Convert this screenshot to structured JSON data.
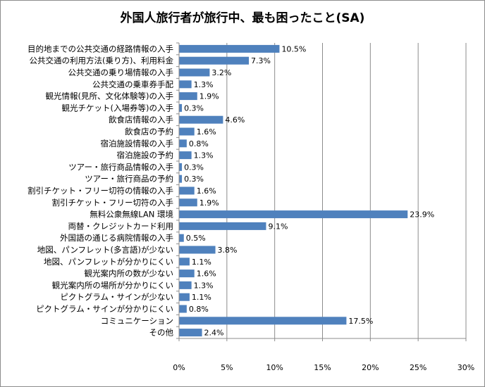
{
  "chart_data": {
    "type": "bar",
    "orientation": "horizontal",
    "title": "外国人旅行者が旅行中、最も困ったこと(SA)",
    "xlabel": "",
    "ylabel": "",
    "xlim": [
      0,
      30
    ],
    "x_ticks": [
      "0%",
      "5%",
      "10%",
      "15%",
      "20%",
      "25%",
      "30%"
    ],
    "grid": "vertical",
    "legend": "none",
    "bar_color": "#4f81bd",
    "value_suffix": "%",
    "categories": [
      "目的地までの公共交通の経路情報の入手",
      "公共交通の利用方法(乗り方)、利用料金",
      "公共交通の乗り場情報の入手",
      "公共交通の乗車券手配",
      "観光情報(見所、文化体験等)の入手",
      "観光チケット(入場券等)の入手",
      "飲食店情報の入手",
      "飲食店の予約",
      "宿泊施設情報の入手",
      "宿泊施設の予約",
      "ツアー・旅行商品情報の入手",
      "ツアー・旅行商品の予約",
      "割引チケット・フリー切符の情報の入手",
      "割引チケット・フリー切符の入手",
      "無料公衆無線LAN 環境",
      "両替・クレジットカード利用",
      "外国語の通じる病院情報の入手",
      "地図、パンフレット(多言語)が少ない",
      "地図、パンフレットが分かりにくい",
      "観光案内所の数が少ない",
      "観光案内所の場所が分かりにくい",
      "ピクトグラム・サインが少ない",
      "ピクトグラム・サインが分かりにくい",
      "コミュニケーション",
      "その他"
    ],
    "values": [
      10.5,
      7.3,
      3.2,
      1.3,
      1.9,
      0.3,
      4.6,
      1.6,
      0.8,
      1.3,
      0.3,
      0.3,
      1.6,
      1.9,
      23.9,
      9.1,
      0.5,
      3.8,
      1.1,
      1.6,
      1.3,
      1.1,
      0.8,
      17.5,
      2.4
    ]
  }
}
